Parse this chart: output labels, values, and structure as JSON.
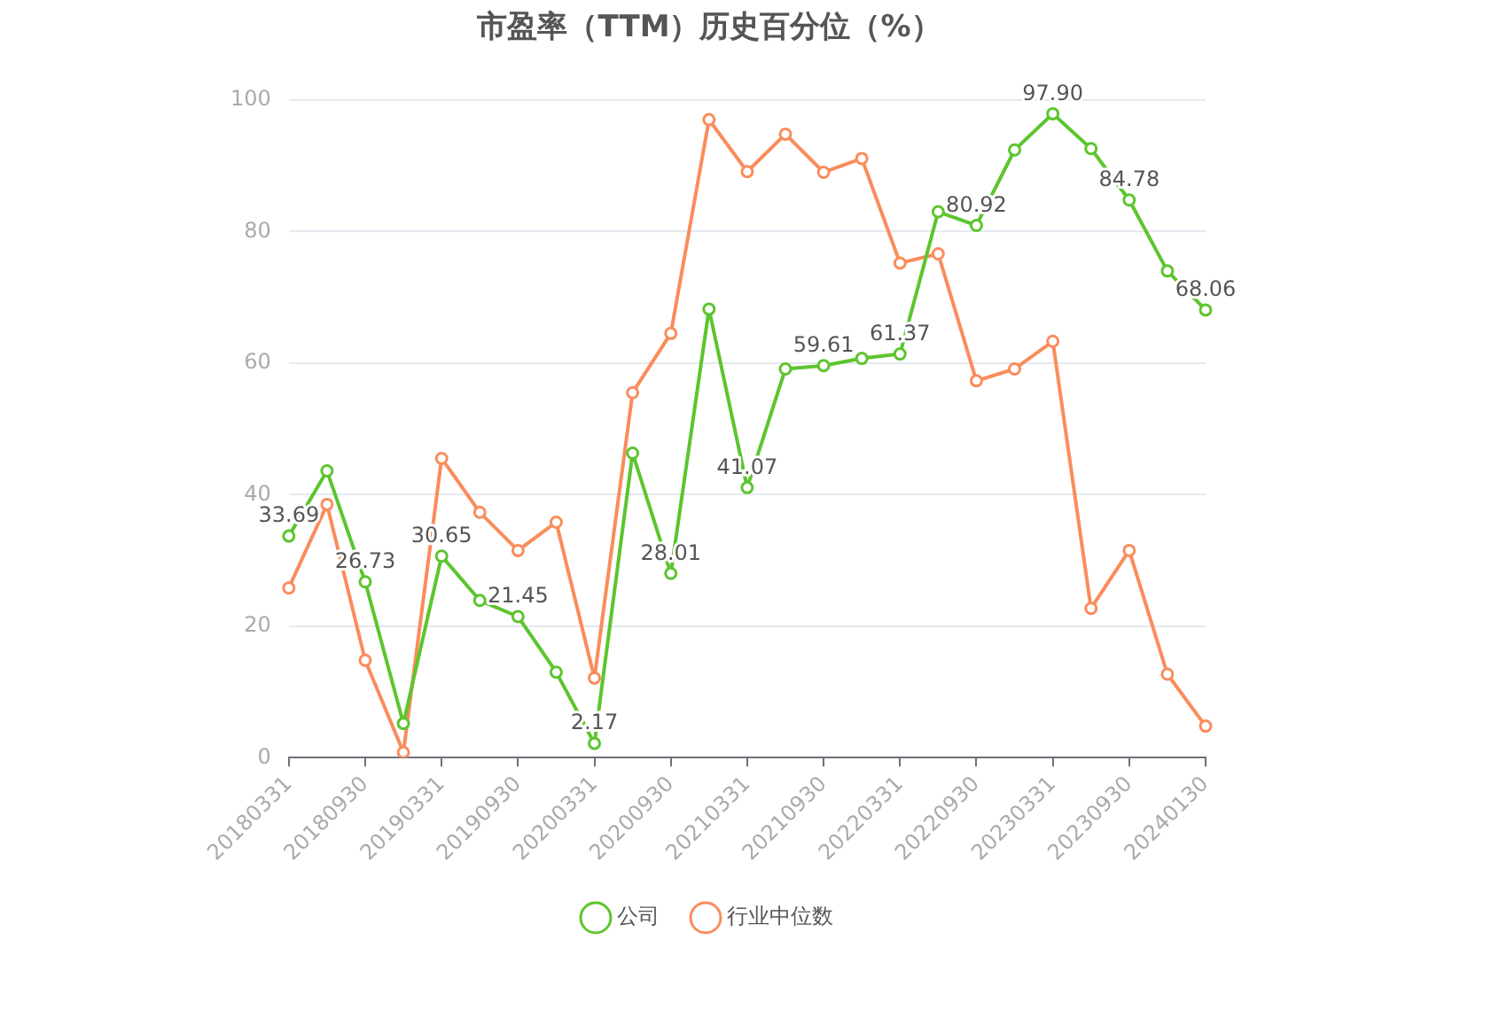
{
  "chart_data": {
    "type": "line",
    "title": "市盈率（TTM）历史百分位（%）",
    "categories": [
      "20180331",
      null,
      "20180930",
      null,
      "20190331",
      null,
      "20190930",
      null,
      "20200331",
      null,
      "20200930",
      null,
      "20210331",
      null,
      "20210930",
      null,
      "20220331",
      null,
      "20220930",
      null,
      "20230331",
      null,
      "20230930",
      null,
      "20240130"
    ],
    "series": [
      {
        "name": "公司",
        "color": "#5cc52e",
        "values": [
          33.69,
          43.6,
          26.73,
          5.2,
          30.65,
          23.9,
          21.45,
          13,
          2.17,
          46.3,
          28.01,
          68.2,
          41.07,
          59.1,
          59.61,
          60.7,
          61.37,
          83,
          80.92,
          92.4,
          97.9,
          92.6,
          84.78,
          74,
          68.06
        ],
        "value_labels": [
          "33.69",
          null,
          "26.73",
          null,
          "30.65",
          null,
          "21.45",
          null,
          "2.17",
          null,
          "28.01",
          null,
          "41.07",
          null,
          "59.61",
          null,
          "61.37",
          null,
          "80.92",
          null,
          "97.90",
          null,
          "84.78",
          null,
          "68.06"
        ]
      },
      {
        "name": "行业中位数",
        "color": "#fa8c5c",
        "values": [
          25.8,
          38.5,
          14.8,
          0.8,
          45.5,
          37.3,
          31.5,
          35.8,
          12.1,
          55.5,
          64.5,
          97,
          89.1,
          94.8,
          89,
          91.1,
          75.2,
          76.6,
          57.3,
          59.1,
          63.3,
          22.7,
          31.5,
          12.7,
          4.8
        ]
      }
    ],
    "ylim": [
      0,
      100
    ],
    "yticks": [
      0,
      20,
      40,
      60,
      80,
      100
    ],
    "grid": "y",
    "legend": "bottom",
    "marker": "circle",
    "line_style": "solid"
  }
}
